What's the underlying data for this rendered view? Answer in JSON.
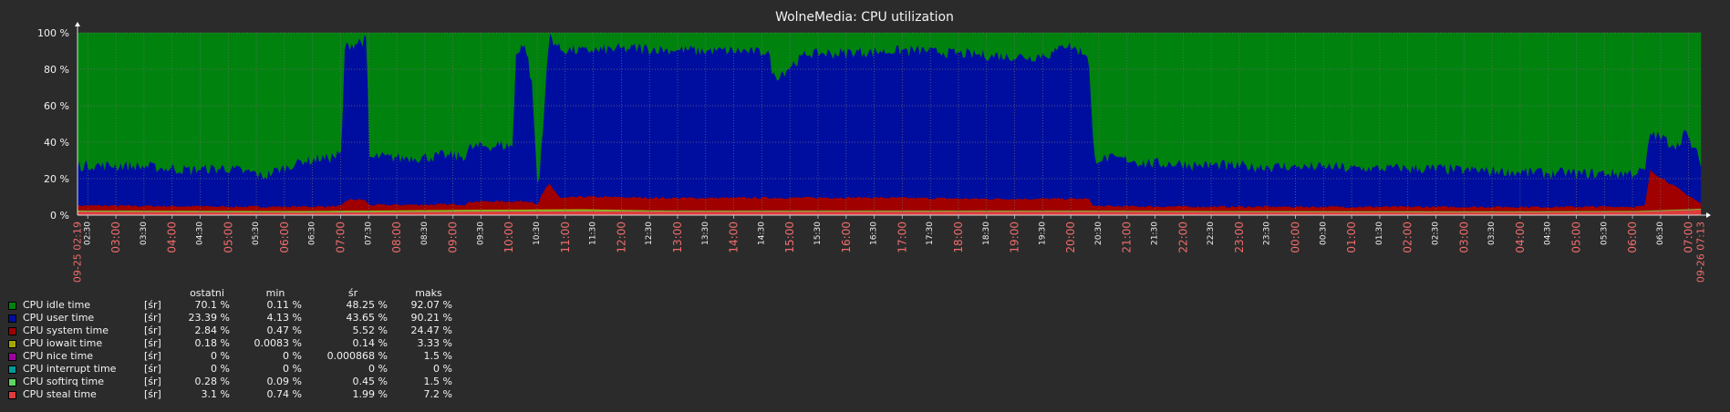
{
  "chart_data": {
    "type": "area",
    "title": "WolneMedia: CPU utilization",
    "y_tick_labels": [
      "0 %",
      "20 %",
      "40 %",
      "60 %",
      "80 %",
      "100 %"
    ],
    "ylim": [
      0,
      100
    ],
    "y_unit": "%",
    "x_start_label": "09-25 02:19",
    "x_end_label": "09-26 07:13",
    "x_tick_labels": [
      "02:30",
      "03:00",
      "03:30",
      "04:00",
      "04:30",
      "05:00",
      "05:30",
      "06:00",
      "06:30",
      "07:00",
      "07:30",
      "08:00",
      "08:30",
      "09:00",
      "09:30",
      "10:00",
      "10:30",
      "11:00",
      "11:30",
      "12:00",
      "12:30",
      "13:00",
      "13:30",
      "14:00",
      "14:30",
      "15:00",
      "15:30",
      "16:00",
      "16:30",
      "17:00",
      "17:30",
      "18:00",
      "18:30",
      "19:00",
      "19:30",
      "20:00",
      "20:30",
      "21:00",
      "21:30",
      "22:00",
      "22:30",
      "23:00",
      "23:30",
      "00:00",
      "00:30",
      "01:00",
      "01:30",
      "02:00",
      "02:30",
      "03:00",
      "03:30",
      "04:00",
      "04:30",
      "05:00",
      "05:30",
      "06:00",
      "06:30",
      "07:00"
    ],
    "x_major_tick_labels": [
      "03:00",
      "04:00",
      "05:00",
      "06:00",
      "07:00",
      "08:00",
      "09:00",
      "10:00",
      "11:00",
      "12:00",
      "13:00",
      "14:00",
      "15:00",
      "16:00",
      "17:00",
      "18:00",
      "19:00",
      "20:00",
      "21:00",
      "22:00",
      "23:00",
      "00:00",
      "01:00",
      "02:00",
      "03:00",
      "04:00",
      "05:00",
      "06:00",
      "07:00"
    ],
    "x_time_range_hours": [
      0,
      28.9
    ],
    "stacked": true,
    "grid": true,
    "colors": {
      "background": "#2b2b2b",
      "plot_background": "#000000",
      "grid": "#6e6e6e",
      "text": "#f2f2f2",
      "major_tick_label": "#f26c6c"
    },
    "series_order_bottom_to_top": [
      "CPU steal time",
      "CPU softirq time",
      "CPU iowait time",
      "CPU system time",
      "CPU user time",
      "CPU idle time"
    ],
    "series": [
      {
        "name": "CPU steal time",
        "color": "#e03c3c",
        "x_hours": [
          0,
          4,
          7,
          9,
          10.5,
          13,
          16,
          18,
          20,
          24,
          26,
          27.8,
          28.9
        ],
        "values": [
          2.0,
          1.5,
          2.0,
          2.2,
          2.0,
          2.0,
          2.0,
          2.0,
          1.8,
          1.7,
          1.7,
          1.9,
          3.1
        ]
      },
      {
        "name": "CPU softirq time",
        "color": "#5fd55f",
        "x_hours": [
          0,
          28.9
        ],
        "values": [
          0.4,
          0.3
        ]
      },
      {
        "name": "CPU iowait time",
        "color": "#a6a600",
        "x_hours": [
          0,
          9,
          10.5,
          28.9
        ],
        "values": [
          0.2,
          0.8,
          0.2,
          0.2
        ]
      },
      {
        "name": "CPU system time",
        "color": "#a00000",
        "x_hours": [
          0,
          3,
          4.7,
          4.8,
          5.1,
          5.2,
          6.9,
          7.0,
          8.1,
          8.2,
          8.25,
          8.4,
          8.6,
          9.0,
          12,
          14,
          16,
          18.0,
          18.1,
          20,
          22,
          24,
          26,
          27.9,
          28.0,
          28.9
        ],
        "values": [
          2.8,
          2.3,
          2.5,
          6.0,
          6.0,
          3.0,
          3.0,
          4.5,
          4.5,
          2.0,
          7.5,
          14.0,
          6.0,
          6.8,
          7.0,
          7.2,
          6.5,
          6.5,
          2.5,
          2.4,
          2.4,
          2.4,
          2.4,
          2.4,
          22.0,
          2.8
        ]
      },
      {
        "name": "CPU user time",
        "color": "#000ea0",
        "x_hours": [
          0,
          1,
          2,
          2.7,
          3.3,
          4.0,
          4.7,
          4.75,
          5.15,
          5.2,
          6.0,
          6.9,
          7.0,
          7.75,
          7.8,
          7.9,
          8.0,
          8.1,
          8.2,
          8.4,
          9.0,
          10,
          11,
          12.3,
          12.4,
          13,
          14,
          15,
          16,
          17,
          17.45,
          17.5,
          18.0,
          18.1,
          18.6,
          19,
          20,
          21,
          22,
          23,
          24,
          25,
          26,
          27,
          27.9,
          28.1,
          28.5,
          28.6,
          28.9
        ],
        "values": [
          22,
          22,
          20,
          21,
          17,
          25,
          28,
          84,
          88,
          26,
          26,
          27,
          30,
          31,
          80,
          86,
          83,
          62,
          5,
          82,
          80,
          82,
          81,
          80,
          66,
          79,
          80,
          81,
          79,
          78,
          80,
          86,
          79,
          26,
          26,
          24,
          23,
          22,
          22,
          21,
          21,
          20,
          19,
          18,
          19,
          22,
          23,
          34,
          23
        ]
      },
      {
        "name": "CPU idle time",
        "color": "#00830e",
        "x_hours": [
          0,
          28.9
        ],
        "values": [
          70,
          70
        ]
      }
    ],
    "legend": {
      "column_headers": [
        "ostatni",
        "min",
        "śr",
        "maks"
      ],
      "rows": [
        {
          "name": "CPU idle time",
          "func": "[śr]",
          "color": "#00830e",
          "last": "70.1 %",
          "min": "0.11 %",
          "avg": "48.25 %",
          "max": "92.07 %"
        },
        {
          "name": "CPU user time",
          "func": "[śr]",
          "color": "#000ea0",
          "last": "23.39 %",
          "min": "4.13 %",
          "avg": "43.65 %",
          "max": "90.21 %"
        },
        {
          "name": "CPU system time",
          "func": "[śr]",
          "color": "#a00000",
          "last": "2.84 %",
          "min": "0.47 %",
          "avg": "5.52 %",
          "max": "24.47 %"
        },
        {
          "name": "CPU iowait time",
          "func": "[śr]",
          "color": "#a6a600",
          "last": "0.18 %",
          "min": "0.0083 %",
          "avg": "0.14 %",
          "max": "3.33 %"
        },
        {
          "name": "CPU nice time",
          "func": "[śr]",
          "color": "#a000a0",
          "last": "0 %",
          "min": "0 %",
          "avg": "0.000868 %",
          "max": "1.5 %"
        },
        {
          "name": "CPU interrupt time",
          "func": "[śr]",
          "color": "#009a9a",
          "last": "0 %",
          "min": "0 %",
          "avg": "0 %",
          "max": "0 %"
        },
        {
          "name": "CPU softirq time",
          "func": "[śr]",
          "color": "#5fd55f",
          "last": "0.28 %",
          "min": "0.09 %",
          "avg": "0.45 %",
          "max": "1.5 %"
        },
        {
          "name": "CPU steal time",
          "func": "[śr]",
          "color": "#e03c3c",
          "last": "3.1 %",
          "min": "0.74 %",
          "avg": "1.99 %",
          "max": "7.2 %"
        }
      ]
    }
  }
}
